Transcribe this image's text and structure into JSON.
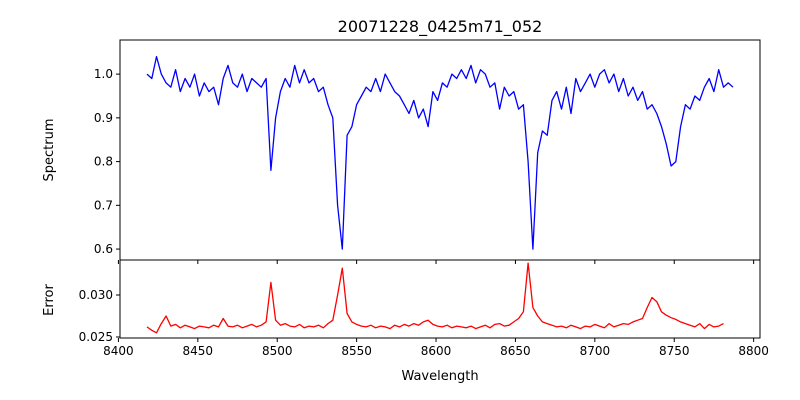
{
  "chart_data": [
    {
      "type": "line",
      "title": "20071228_0425m71_052",
      "xlabel": "Wavelength",
      "ylabel": "Spectrum",
      "color": "#0000ff",
      "xlim": [
        8401,
        8804
      ],
      "ylim": [
        0.575,
        1.078
      ],
      "xticks": [
        8400,
        8450,
        8500,
        8550,
        8600,
        8650,
        8700,
        8750,
        8800
      ],
      "yticks": [
        0.6,
        0.7,
        0.8,
        0.9,
        1.0
      ],
      "ytick_labels": [
        "0.6",
        "0.7",
        "0.8",
        "0.9",
        "1.0"
      ],
      "x_start": 8418,
      "x_step": 3,
      "y": [
        1.0,
        0.99,
        1.04,
        1.0,
        0.98,
        0.97,
        1.01,
        0.96,
        0.99,
        0.97,
        1.0,
        0.95,
        0.98,
        0.96,
        0.97,
        0.93,
        0.99,
        1.02,
        0.98,
        0.97,
        1.0,
        0.96,
        0.99,
        0.98,
        0.97,
        0.99,
        0.78,
        0.9,
        0.96,
        0.99,
        0.97,
        1.02,
        0.98,
        1.01,
        0.98,
        0.99,
        0.96,
        0.97,
        0.93,
        0.9,
        0.7,
        0.6,
        0.86,
        0.88,
        0.93,
        0.95,
        0.97,
        0.96,
        0.99,
        0.96,
        1.0,
        0.98,
        0.96,
        0.95,
        0.93,
        0.91,
        0.94,
        0.9,
        0.92,
        0.88,
        0.96,
        0.94,
        0.98,
        0.97,
        1.0,
        0.99,
        1.01,
        0.99,
        1.02,
        0.98,
        1.01,
        1.0,
        0.97,
        0.98,
        0.92,
        0.97,
        0.95,
        0.96,
        0.92,
        0.93,
        0.8,
        0.6,
        0.82,
        0.87,
        0.86,
        0.94,
        0.96,
        0.92,
        0.97,
        0.91,
        0.99,
        0.96,
        0.98,
        1.0,
        0.97,
        1.0,
        1.01,
        0.98,
        1.0,
        0.96,
        0.99,
        0.95,
        0.97,
        0.94,
        0.96,
        0.92,
        0.93,
        0.91,
        0.88,
        0.84,
        0.79,
        0.8,
        0.88,
        0.93,
        0.92,
        0.95,
        0.94,
        0.97,
        0.99,
        0.96,
        1.01,
        0.97,
        0.98,
        0.97
      ]
    },
    {
      "type": "line",
      "xlabel": "Wavelength",
      "ylabel": "Error",
      "color": "#ff0000",
      "xlim": [
        8401,
        8804
      ],
      "ylim": [
        0.02488,
        0.03417
      ],
      "xticks": [
        8400,
        8450,
        8500,
        8550,
        8600,
        8650,
        8700,
        8750,
        8800
      ],
      "xtick_labels": [
        "8400",
        "8450",
        "8500",
        "8550",
        "8600",
        "8650",
        "8700",
        "8750",
        "8800"
      ],
      "yticks": [
        0.025,
        0.03
      ],
      "ytick_labels": [
        "0.025",
        "0.030"
      ],
      "x_start": 8418,
      "x_step": 3,
      "y": [
        0.0262,
        0.0258,
        0.0255,
        0.0266,
        0.0275,
        0.0263,
        0.0265,
        0.0261,
        0.0264,
        0.0262,
        0.026,
        0.0263,
        0.0262,
        0.0261,
        0.0264,
        0.0262,
        0.0272,
        0.0263,
        0.0262,
        0.0264,
        0.0261,
        0.0263,
        0.0265,
        0.0262,
        0.0264,
        0.0268,
        0.0315,
        0.027,
        0.0264,
        0.0266,
        0.0263,
        0.0262,
        0.0265,
        0.0261,
        0.0263,
        0.0262,
        0.0264,
        0.0261,
        0.0266,
        0.027,
        0.03,
        0.0332,
        0.0278,
        0.0268,
        0.0265,
        0.0263,
        0.0262,
        0.0264,
        0.0261,
        0.0263,
        0.0262,
        0.026,
        0.0264,
        0.0262,
        0.0265,
        0.0263,
        0.0266,
        0.0264,
        0.0268,
        0.027,
        0.0265,
        0.0263,
        0.0262,
        0.0264,
        0.0261,
        0.0263,
        0.0262,
        0.0261,
        0.0263,
        0.026,
        0.0262,
        0.0264,
        0.0261,
        0.0265,
        0.0266,
        0.0263,
        0.0264,
        0.0268,
        0.0272,
        0.028,
        0.0338,
        0.0285,
        0.0275,
        0.0268,
        0.0266,
        0.0264,
        0.0262,
        0.0263,
        0.0261,
        0.0264,
        0.0262,
        0.026,
        0.0263,
        0.0262,
        0.0265,
        0.0263,
        0.0261,
        0.0266,
        0.0262,
        0.0264,
        0.0266,
        0.0265,
        0.0268,
        0.027,
        0.0272,
        0.0285,
        0.0297,
        0.0292,
        0.028,
        0.0276,
        0.0273,
        0.0271,
        0.0268,
        0.0266,
        0.0264,
        0.0262,
        0.0266,
        0.026,
        0.0265,
        0.0262,
        0.0263,
        0.0266
      ]
    }
  ]
}
